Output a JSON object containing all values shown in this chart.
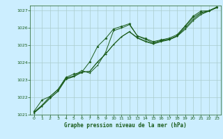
{
  "xlabel": "Graphe pression niveau de la mer (hPa)",
  "bg_color": "#cceeff",
  "grid_color": "#aacccc",
  "line_color": "#1a5c1a",
  "marker_color": "#1a5c1a",
  "xlim": [
    -0.5,
    23.5
  ],
  "ylim": [
    1021.0,
    1027.3
  ],
  "xticks": [
    0,
    1,
    2,
    3,
    4,
    5,
    6,
    7,
    8,
    9,
    10,
    11,
    12,
    13,
    14,
    15,
    16,
    17,
    18,
    19,
    20,
    21,
    22,
    23
  ],
  "yticks": [
    1021,
    1022,
    1023,
    1024,
    1025,
    1026,
    1027
  ],
  "series": [
    [
      1021.15,
      1021.55,
      1022.05,
      1022.45,
      1023.1,
      1023.25,
      1023.55,
      1023.4,
      1023.85,
      1024.6,
      1025.85,
      1026.0,
      1026.2,
      1025.55,
      1025.35,
      1025.15,
      1025.3,
      1025.35,
      1025.55,
      1026.1,
      1026.6,
      1026.9,
      1027.0,
      1027.2
    ],
    [
      1021.1,
      1021.5,
      1021.95,
      1022.35,
      1023.05,
      1023.2,
      1023.45,
      1023.5,
      1024.05,
      1024.5,
      1025.05,
      1025.5,
      1025.8,
      1025.45,
      1025.25,
      1025.1,
      1025.25,
      1025.35,
      1025.55,
      1026.0,
      1026.5,
      1026.85,
      1026.98,
      1027.18
    ],
    [
      1021.1,
      1021.5,
      1021.95,
      1022.35,
      1023.05,
      1023.2,
      1023.45,
      1023.5,
      1024.05,
      1024.5,
      1025.05,
      1025.5,
      1025.78,
      1025.42,
      1025.22,
      1025.08,
      1025.22,
      1025.32,
      1025.52,
      1025.92,
      1026.42,
      1026.78,
      1026.98,
      1027.18
    ],
    [
      1021.2,
      1021.85,
      1022.05,
      1022.45,
      1023.15,
      1023.35,
      1023.45,
      1024.05,
      1024.95,
      1025.4,
      1025.95,
      1026.1,
      1026.25,
      1025.55,
      1025.4,
      1025.22,
      1025.32,
      1025.42,
      1025.62,
      1026.12,
      1026.68,
      1026.98,
      1027.0,
      1027.22
    ]
  ]
}
